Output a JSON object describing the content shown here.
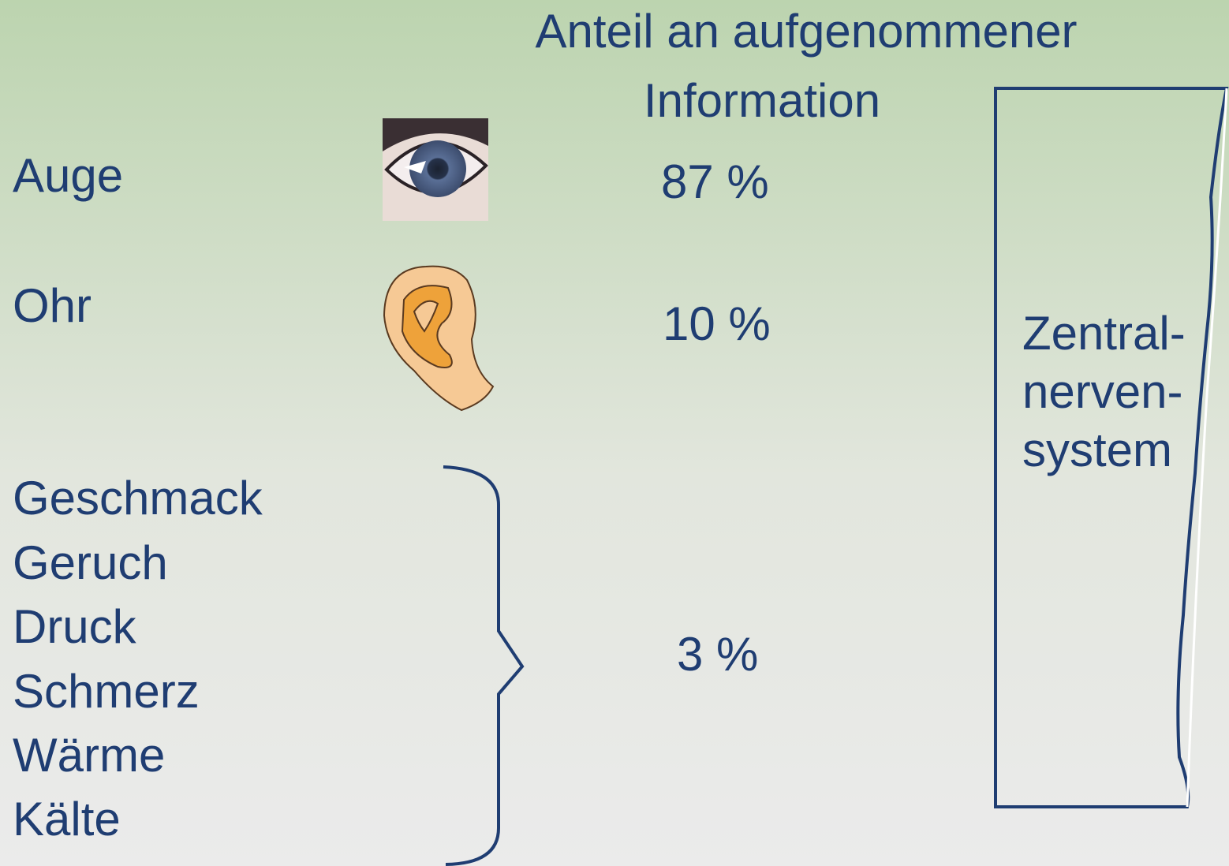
{
  "title": {
    "lines": [
      "Anteil an aufgenommener",
      "Information"
    ]
  },
  "rows": [
    {
      "label": "Auge",
      "share": "87 %"
    },
    {
      "label": "Ohr",
      "share": "10 %"
    }
  ],
  "group": {
    "labels": [
      "Geschmack",
      "Geruch",
      "Druck",
      "Schmerz",
      "Wärme",
      "Kälte"
    ],
    "share": "3 %"
  },
  "box": {
    "lines": [
      "Zentral-",
      "nerven-",
      "system"
    ]
  }
}
